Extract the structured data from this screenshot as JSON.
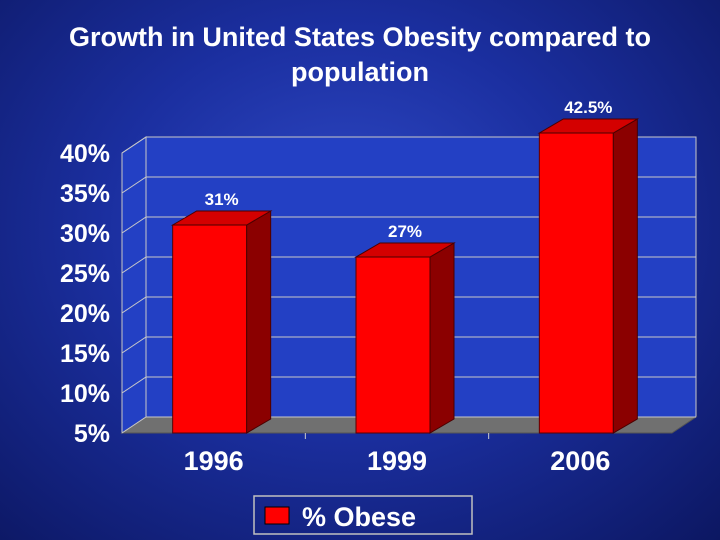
{
  "slide": {
    "title_line1": "Growth in United States Obesity compared to",
    "title_line2": "population"
  },
  "chart_data": {
    "type": "bar",
    "title": "Growth in United States Obesity compared to population",
    "categories": [
      "1996",
      "1999",
      "2006"
    ],
    "series": [
      {
        "name": "% Obese",
        "values": [
          31,
          27,
          42.5
        ],
        "color": "#ff0000",
        "side_color": "#8b0000",
        "top_color": "#d40000"
      }
    ],
    "data_labels": [
      "31%",
      "27%",
      "42.5%"
    ],
    "ylim": [
      5,
      40
    ],
    "y_ticks": [
      5,
      10,
      15,
      20,
      25,
      30,
      35,
      40
    ],
    "y_tick_labels": [
      "5%",
      "10%",
      "15%",
      "20%",
      "25%",
      "30%",
      "35%",
      "40%"
    ],
    "xlabel": "",
    "ylabel": "",
    "grid": true,
    "legend_position": "bottom",
    "colors": {
      "wall": "#2340c4",
      "floor": "#707070",
      "grid": "#c8c8c8",
      "text": "#ffffff"
    }
  }
}
